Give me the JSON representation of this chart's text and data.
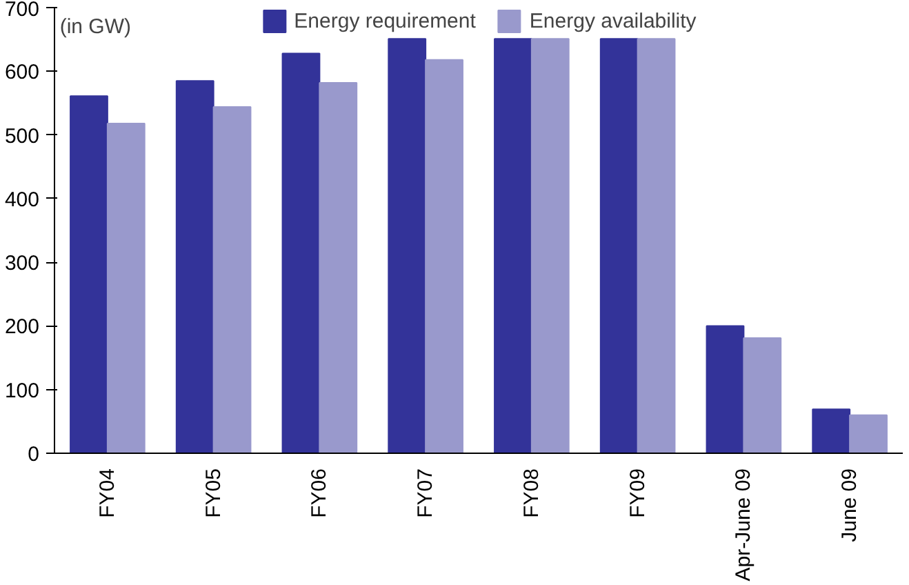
{
  "chart_data": {
    "type": "bar",
    "categories": [
      "FY04",
      "FY05",
      "FY06",
      "FY07",
      "FY08",
      "FY09",
      "Apr-June 09",
      "June 09"
    ],
    "series": [
      {
        "name": "Energy requirement",
        "color": "#333399",
        "values": [
          561,
          585,
          628,
          651,
          651,
          651,
          200,
          69
        ]
      },
      {
        "name": "Energy availability",
        "color": "#9999cc",
        "values": [
          518,
          544,
          582,
          618,
          651,
          651,
          181,
          60
        ]
      }
    ],
    "ylim": [
      0,
      700
    ],
    "yticks": [
      0,
      100,
      200,
      300,
      400,
      500,
      600,
      700
    ],
    "grid": false,
    "legend": "top",
    "annotations": [
      "(in GW)"
    ]
  }
}
